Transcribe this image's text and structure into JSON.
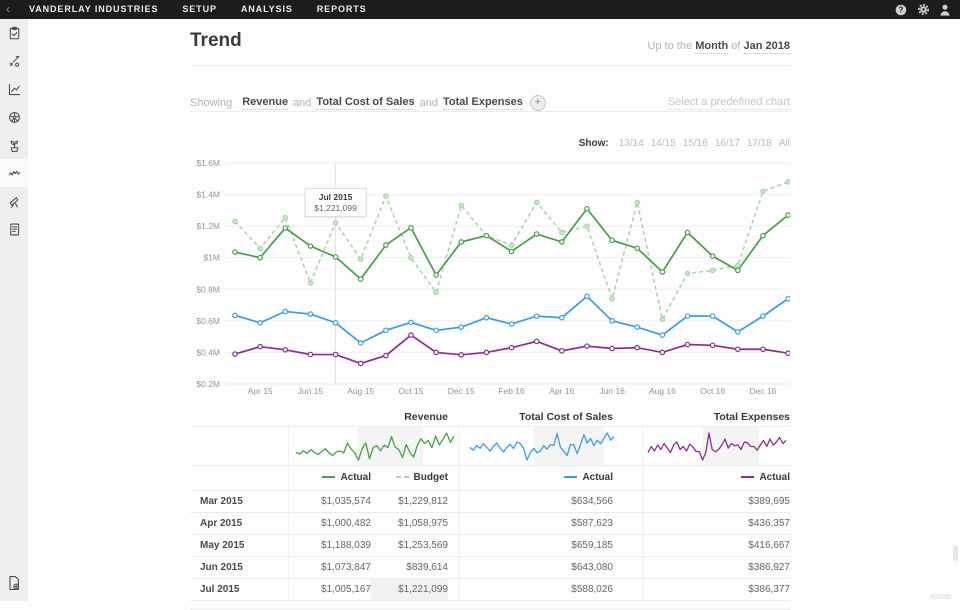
{
  "topbar": {
    "back_glyph": "‹",
    "items": [
      "VANDERLAY INDUSTRIES",
      "SETUP",
      "ANALYSIS",
      "REPORTS"
    ],
    "right_icons": [
      "help",
      "settings",
      "account"
    ]
  },
  "sidebar": {
    "icons": [
      "tasks-clipboard",
      "actuals-entry",
      "performance-chart",
      "drivers-wheel",
      "growth-plant",
      "trend-waveform",
      "explorer-telescope",
      "reports-document"
    ],
    "active_index": 5,
    "bottom_icon": "export-document"
  },
  "header": {
    "title": "Trend",
    "period": {
      "prefix": "Up to the",
      "unit": "Month",
      "of": "of",
      "value": "Jan 2018"
    }
  },
  "showing": {
    "label": "Showing",
    "and": "and",
    "series": [
      "Revenue",
      "Total Cost of Sales",
      "Total Expenses"
    ],
    "plus": "+",
    "predefined": "Select a predefined chart"
  },
  "show_filter": {
    "label": "Show:",
    "options": [
      "13/14",
      "14/15",
      "15/16",
      "16/17",
      "17/18",
      "All"
    ]
  },
  "tooltip": {
    "title": "Jul 2015",
    "value": "$1,221,099"
  },
  "chart_data": {
    "main": {
      "type": "line",
      "x": [
        "Mar 15",
        "Apr 15",
        "May 15",
        "Jun 15",
        "Jul 15",
        "Aug 15",
        "Sep 15",
        "Oct 15",
        "Nov 15",
        "Dec 15",
        "Jan 16",
        "Feb 16",
        "Mar 16",
        "Apr 16",
        "May 16",
        "Jun 16",
        "Jul 16",
        "Aug 16",
        "Sep 16",
        "Oct 16",
        "Nov 16",
        "Dec 16",
        "Jan 17"
      ],
      "x_ticks": [
        {
          "label": "Apr 15",
          "index": 1
        },
        {
          "label": "Jun 15",
          "index": 3
        },
        {
          "label": "Aug 15",
          "index": 5
        },
        {
          "label": "Oct 15",
          "index": 7
        },
        {
          "label": "Dec 15",
          "index": 9
        },
        {
          "label": "Feb 16",
          "index": 11
        },
        {
          "label": "Apr 16",
          "index": 13
        },
        {
          "label": "Jun 16",
          "index": 15
        },
        {
          "label": "Aug 16",
          "index": 17
        },
        {
          "label": "Oct 16",
          "index": 19
        },
        {
          "label": "Dec 16",
          "index": 21
        }
      ],
      "y_ticks": [
        {
          "label": "$1.6M",
          "value": 1600000
        },
        {
          "label": "$1.4M",
          "value": 1400000
        },
        {
          "label": "$1.2M",
          "value": 1200000
        },
        {
          "label": "$1M",
          "value": 1000000
        },
        {
          "label": "$0.8M",
          "value": 800000
        },
        {
          "label": "$0.6M",
          "value": 600000
        },
        {
          "label": "$0.4M",
          "value": 400000
        },
        {
          "label": "$0.2M",
          "value": 200000
        }
      ],
      "ylim": [
        200000,
        1600000
      ],
      "hover_index": 4,
      "series": [
        {
          "name": "Revenue Budget",
          "color": "#a8d3a8",
          "dashed": true,
          "marker_fill": "#cde6cd",
          "values": [
            1229812,
            1058975,
            1253569,
            839614,
            1221099,
            990000,
            1390000,
            1000000,
            780000,
            1330000,
            1140000,
            1080000,
            1350000,
            1160000,
            1200000,
            740000,
            1350000,
            610000,
            900000,
            920000,
            950000,
            1420000,
            1480000
          ]
        },
        {
          "name": "Revenue Actual",
          "color": "#46a046",
          "dashed": false,
          "marker_fill": "#ffffff",
          "values": [
            1035574,
            1000482,
            1188039,
            1073847,
            1005167,
            865000,
            1080000,
            1190000,
            890000,
            1100000,
            1140000,
            1040000,
            1150000,
            1100000,
            1310000,
            1110000,
            1060000,
            910000,
            1160000,
            1010000,
            920000,
            1140000,
            1270000
          ]
        },
        {
          "name": "Total Cost of Sales Actual",
          "color": "#3a9fdc",
          "dashed": false,
          "marker_fill": "#ffffff",
          "values": [
            634566,
            587623,
            659185,
            643080,
            588026,
            460000,
            540000,
            590000,
            540000,
            560000,
            620000,
            580000,
            630000,
            620000,
            755000,
            600000,
            560000,
            510000,
            630000,
            630000,
            530000,
            630000,
            740000
          ]
        },
        {
          "name": "Total Expenses Actual",
          "color": "#8b2e8e",
          "dashed": false,
          "marker_fill": "#ffffff",
          "values": [
            389695,
            436357,
            416667,
            386927,
            386377,
            330000,
            380000,
            510000,
            400000,
            385000,
            400000,
            430000,
            470000,
            410000,
            440000,
            425000,
            430000,
            400000,
            450000,
            445000,
            420000,
            420000,
            395000
          ]
        }
      ]
    },
    "sparklines": {
      "revenue": {
        "color": "#46a046",
        "values": [
          1010,
          980,
          1040,
          990,
          1060,
          1010,
          970,
          1030,
          1080,
          1000,
          950,
          1020,
          1036,
          1000,
          1188,
          1074,
          1005,
          865,
          1080,
          1190,
          890,
          1100,
          1140,
          1040,
          1150,
          1100,
          1310,
          1110,
          1060,
          910,
          1160,
          1010,
          920,
          1140,
          1270,
          1180,
          1240,
          1100,
          1320,
          1150,
          1260,
          1380,
          1200,
          1320
        ]
      },
      "cost": {
        "color": "#3a9fdc",
        "values": [
          600,
          570,
          620,
          590,
          640,
          600,
          560,
          610,
          650,
          590,
          550,
          600,
          635,
          588,
          659,
          643,
          588,
          460,
          540,
          590,
          540,
          560,
          620,
          580,
          630,
          620,
          755,
          600,
          560,
          510,
          630,
          630,
          530,
          630,
          740,
          650,
          700,
          620,
          680,
          640,
          700,
          760,
          680,
          720
        ]
      },
      "expenses": {
        "color": "#8b2e8e",
        "values": [
          380,
          420,
          390,
          430,
          400,
          440,
          410,
          380,
          430,
          450,
          400,
          420,
          390,
          436,
          417,
          387,
          386,
          330,
          380,
          510,
          400,
          385,
          400,
          430,
          470,
          410,
          440,
          425,
          430,
          400,
          450,
          445,
          420,
          420,
          395,
          430,
          460,
          420,
          470,
          430,
          450,
          480,
          440,
          460
        ]
      }
    }
  },
  "table": {
    "group_headers": [
      "Revenue",
      "Total Cost of Sales",
      "Total Expenses"
    ],
    "legend": [
      {
        "style": "solid",
        "color": "#46a046",
        "label": "Actual"
      },
      {
        "style": "dashed",
        "color": "#a8d3a8",
        "label": "Budget"
      },
      {
        "style": "solid",
        "color": "#3a9fdc",
        "label": "Actual"
      },
      {
        "style": "solid",
        "color": "#8b2e8e",
        "label": "Actual"
      }
    ],
    "rows": [
      {
        "month": "Mar 2015",
        "values": [
          "$1,035,574",
          "$1,229,812",
          "$634,566",
          "$389,695"
        ]
      },
      {
        "month": "Apr 2015",
        "values": [
          "$1,000,482",
          "$1,058,975",
          "$587,623",
          "$436,357"
        ]
      },
      {
        "month": "May 2015",
        "values": [
          "$1,188,039",
          "$1,253,569",
          "$659,185",
          "$416,667"
        ]
      },
      {
        "month": "Jun 2015",
        "values": [
          "$1,073,847",
          "$839,614",
          "$643,080",
          "$386,927"
        ]
      },
      {
        "month": "Jul 2015",
        "values": [
          "$1,005,167",
          "$1,221,099",
          "$588,026",
          "$386,377"
        ]
      }
    ],
    "highlight": {
      "row_index": 4,
      "cell_index": 2
    }
  }
}
